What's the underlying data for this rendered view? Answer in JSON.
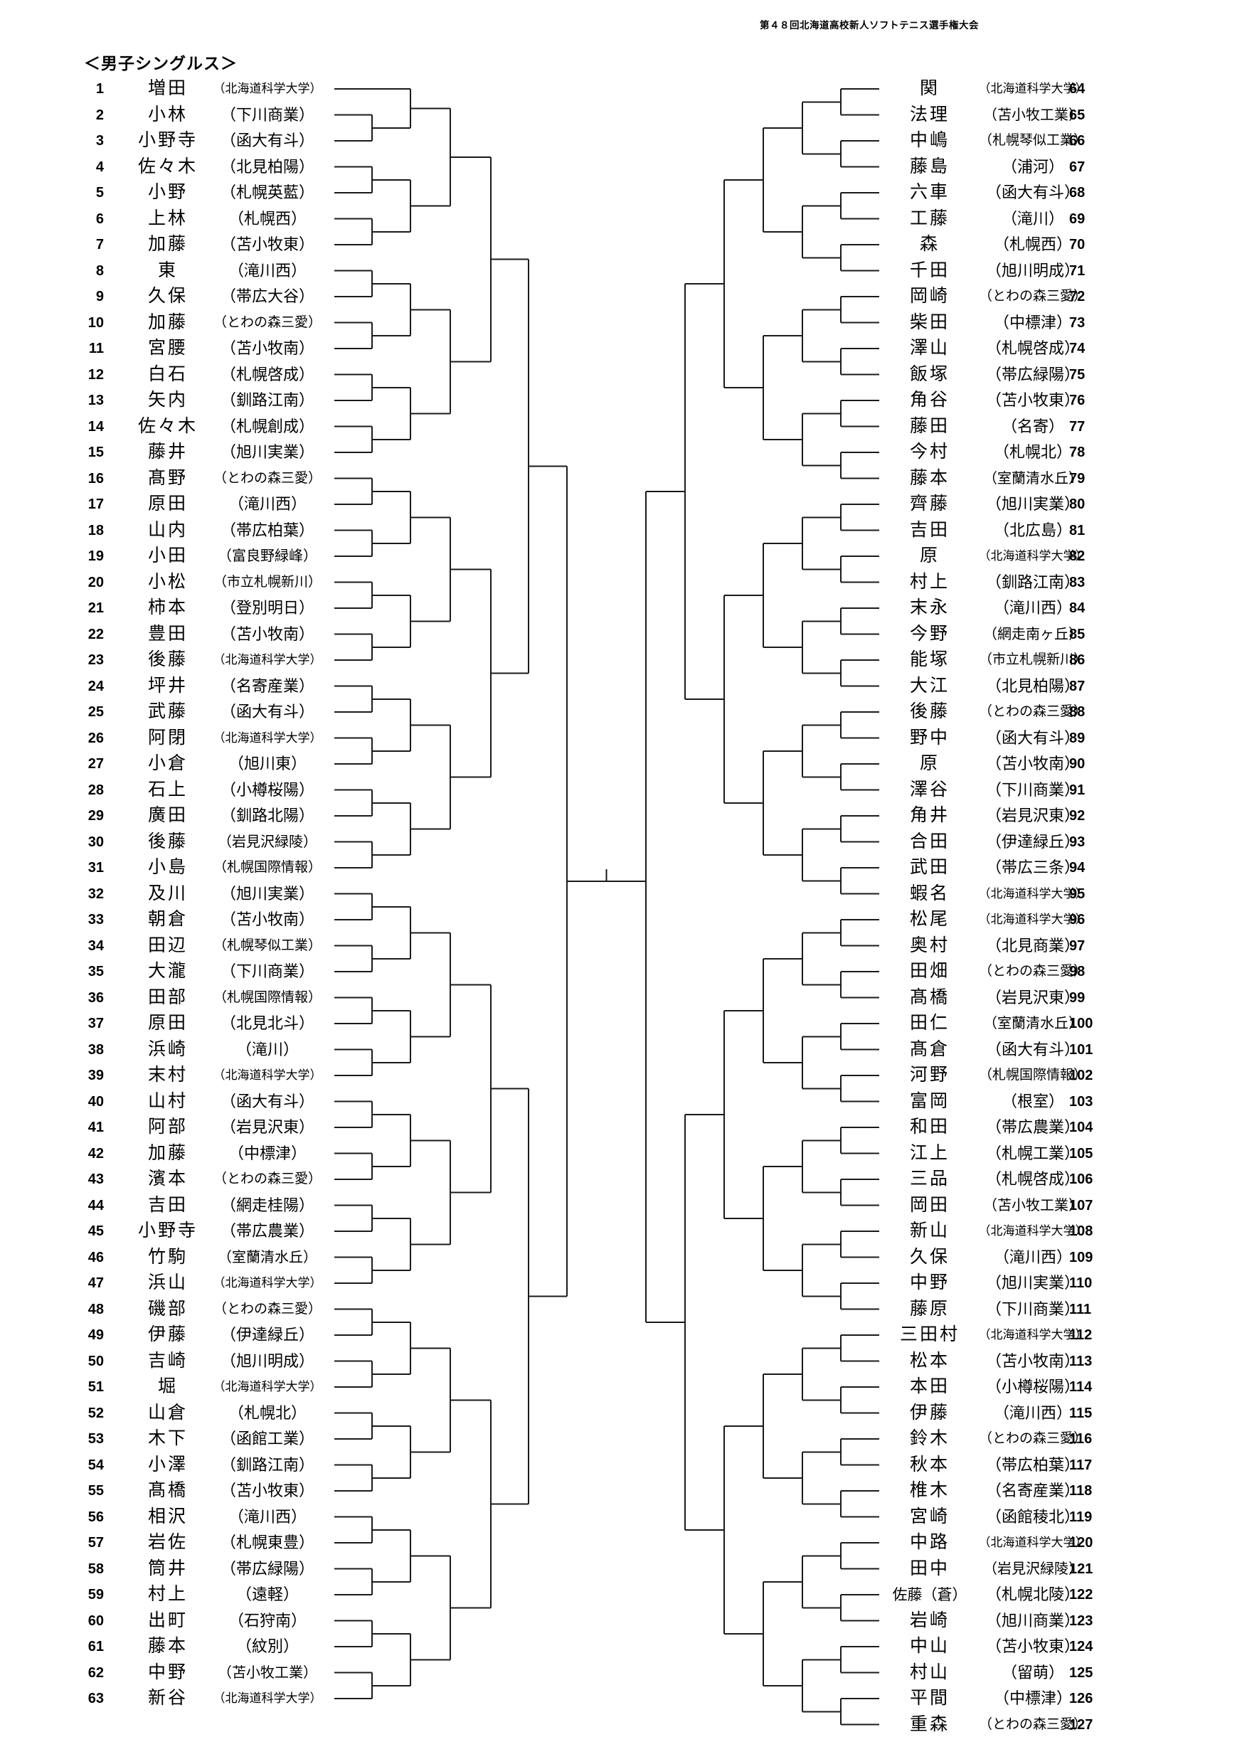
{
  "title": "第４８回北海道高校新人ソフトテニス選手権大会",
  "section": "＜男子シングルス＞",
  "colors": {
    "line": "#1a1a1a",
    "text": "#000000"
  },
  "bracket": {
    "format": "single-elimination-128-draw",
    "bye": "entry 1 advances directly to round 2",
    "left": [
      {
        "no": 1,
        "name": "増田",
        "school": "（北海道科学大学）"
      },
      {
        "no": 2,
        "name": "小林",
        "school": "（下川商業）"
      },
      {
        "no": 3,
        "name": "小野寺",
        "school": "（函大有斗）"
      },
      {
        "no": 4,
        "name": "佐々木",
        "school": "（北見柏陽）"
      },
      {
        "no": 5,
        "name": "小野",
        "school": "（札幌英藍）"
      },
      {
        "no": 6,
        "name": "上林",
        "school": "（札幌西）"
      },
      {
        "no": 7,
        "name": "加藤",
        "school": "（苫小牧東）"
      },
      {
        "no": 8,
        "name": "東",
        "school": "（滝川西）"
      },
      {
        "no": 9,
        "name": "久保",
        "school": "（帯広大谷）"
      },
      {
        "no": 10,
        "name": "加藤",
        "school": "（とわの森三愛）"
      },
      {
        "no": 11,
        "name": "宮腰",
        "school": "（苫小牧南）"
      },
      {
        "no": 12,
        "name": "白石",
        "school": "（札幌啓成）"
      },
      {
        "no": 13,
        "name": "矢内",
        "school": "（釧路江南）"
      },
      {
        "no": 14,
        "name": "佐々木",
        "school": "（札幌創成）"
      },
      {
        "no": 15,
        "name": "藤井",
        "school": "（旭川実業）"
      },
      {
        "no": 16,
        "name": "髙野",
        "school": "（とわの森三愛）"
      },
      {
        "no": 17,
        "name": "原田",
        "school": "（滝川西）"
      },
      {
        "no": 18,
        "name": "山内",
        "school": "（帯広柏葉）"
      },
      {
        "no": 19,
        "name": "小田",
        "school": "（富良野緑峰）"
      },
      {
        "no": 20,
        "name": "小松",
        "school": "（市立札幌新川）"
      },
      {
        "no": 21,
        "name": "柿本",
        "school": "（登別明日）"
      },
      {
        "no": 22,
        "name": "豊田",
        "school": "（苫小牧南）"
      },
      {
        "no": 23,
        "name": "後藤",
        "school": "（北海道科学大学）"
      },
      {
        "no": 24,
        "name": "坪井",
        "school": "（名寄産業）"
      },
      {
        "no": 25,
        "name": "武藤",
        "school": "（函大有斗）"
      },
      {
        "no": 26,
        "name": "阿閉",
        "school": "（北海道科学大学）"
      },
      {
        "no": 27,
        "name": "小倉",
        "school": "（旭川東）"
      },
      {
        "no": 28,
        "name": "石上",
        "school": "（小樽桜陽）"
      },
      {
        "no": 29,
        "name": "廣田",
        "school": "（釧路北陽）"
      },
      {
        "no": 30,
        "name": "後藤",
        "school": "（岩見沢緑陵）"
      },
      {
        "no": 31,
        "name": "小島",
        "school": "（札幌国際情報）"
      },
      {
        "no": 32,
        "name": "及川",
        "school": "（旭川実業）"
      },
      {
        "no": 33,
        "name": "朝倉",
        "school": "（苫小牧南）"
      },
      {
        "no": 34,
        "name": "田辺",
        "school": "（札幌琴似工業）"
      },
      {
        "no": 35,
        "name": "大瀧",
        "school": "（下川商業）"
      },
      {
        "no": 36,
        "name": "田部",
        "school": "（札幌国際情報）"
      },
      {
        "no": 37,
        "name": "原田",
        "school": "（北見北斗）"
      },
      {
        "no": 38,
        "name": "浜崎",
        "school": "（滝川）"
      },
      {
        "no": 39,
        "name": "末村",
        "school": "（北海道科学大学）"
      },
      {
        "no": 40,
        "name": "山村",
        "school": "（函大有斗）"
      },
      {
        "no": 41,
        "name": "阿部",
        "school": "（岩見沢東）"
      },
      {
        "no": 42,
        "name": "加藤",
        "school": "（中標津）"
      },
      {
        "no": 43,
        "name": "濱本",
        "school": "（とわの森三愛）"
      },
      {
        "no": 44,
        "name": "吉田",
        "school": "（網走桂陽）"
      },
      {
        "no": 45,
        "name": "小野寺",
        "school": "（帯広農業）"
      },
      {
        "no": 46,
        "name": "竹駒",
        "school": "（室蘭清水丘）"
      },
      {
        "no": 47,
        "name": "浜山",
        "school": "（北海道科学大学）"
      },
      {
        "no": 48,
        "name": "磯部",
        "school": "（とわの森三愛）"
      },
      {
        "no": 49,
        "name": "伊藤",
        "school": "（伊達緑丘）"
      },
      {
        "no": 50,
        "name": "吉崎",
        "school": "（旭川明成）"
      },
      {
        "no": 51,
        "name": "堀",
        "school": "（北海道科学大学）"
      },
      {
        "no": 52,
        "name": "山倉",
        "school": "（札幌北）"
      },
      {
        "no": 53,
        "name": "木下",
        "school": "（函館工業）"
      },
      {
        "no": 54,
        "name": "小澤",
        "school": "（釧路江南）"
      },
      {
        "no": 55,
        "name": "髙橋",
        "school": "（苫小牧東）"
      },
      {
        "no": 56,
        "name": "相沢",
        "school": "（滝川西）"
      },
      {
        "no": 57,
        "name": "岩佐",
        "school": "（札幌東豊）"
      },
      {
        "no": 58,
        "name": "筒井",
        "school": "（帯広緑陽）"
      },
      {
        "no": 59,
        "name": "村上",
        "school": "（遠軽）"
      },
      {
        "no": 60,
        "name": "出町",
        "school": "（石狩南）"
      },
      {
        "no": 61,
        "name": "藤本",
        "school": "（紋別）"
      },
      {
        "no": 62,
        "name": "中野",
        "school": "（苫小牧工業）"
      },
      {
        "no": 63,
        "name": "新谷",
        "school": "（北海道科学大学）"
      }
    ],
    "right": [
      {
        "no": 64,
        "name": "関",
        "school": "（北海道科学大学）"
      },
      {
        "no": 65,
        "name": "法理",
        "school": "（苫小牧工業）"
      },
      {
        "no": 66,
        "name": "中嶋",
        "school": "（札幌琴似工業）"
      },
      {
        "no": 67,
        "name": "藤島",
        "school": "（浦河）"
      },
      {
        "no": 68,
        "name": "六車",
        "school": "（函大有斗）"
      },
      {
        "no": 69,
        "name": "工藤",
        "school": "（滝川）"
      },
      {
        "no": 70,
        "name": "森",
        "school": "（札幌西）"
      },
      {
        "no": 71,
        "name": "千田",
        "school": "（旭川明成）"
      },
      {
        "no": 72,
        "name": "岡崎",
        "school": "（とわの森三愛）"
      },
      {
        "no": 73,
        "name": "柴田",
        "school": "（中標津）"
      },
      {
        "no": 74,
        "name": "澤山",
        "school": "（札幌啓成）"
      },
      {
        "no": 75,
        "name": "飯塚",
        "school": "（帯広緑陽）"
      },
      {
        "no": 76,
        "name": "角谷",
        "school": "（苫小牧東）"
      },
      {
        "no": 77,
        "name": "藤田",
        "school": "（名寄）"
      },
      {
        "no": 78,
        "name": "今村",
        "school": "（札幌北）"
      },
      {
        "no": 79,
        "name": "藤本",
        "school": "（室蘭清水丘）"
      },
      {
        "no": 80,
        "name": "齊藤",
        "school": "（旭川実業）"
      },
      {
        "no": 81,
        "name": "吉田",
        "school": "（北広島）"
      },
      {
        "no": 82,
        "name": "原",
        "school": "（北海道科学大学）"
      },
      {
        "no": 83,
        "name": "村上",
        "school": "（釧路江南）"
      },
      {
        "no": 84,
        "name": "末永",
        "school": "（滝川西）"
      },
      {
        "no": 85,
        "name": "今野",
        "school": "（網走南ヶ丘）"
      },
      {
        "no": 86,
        "name": "能塚",
        "school": "（市立札幌新川）"
      },
      {
        "no": 87,
        "name": "大江",
        "school": "（北見柏陽）"
      },
      {
        "no": 88,
        "name": "後藤",
        "school": "（とわの森三愛）"
      },
      {
        "no": 89,
        "name": "野中",
        "school": "（函大有斗）"
      },
      {
        "no": 90,
        "name": "原",
        "school": "（苫小牧南）"
      },
      {
        "no": 91,
        "name": "澤谷",
        "school": "（下川商業）"
      },
      {
        "no": 92,
        "name": "角井",
        "school": "（岩見沢東）"
      },
      {
        "no": 93,
        "name": "合田",
        "school": "（伊達緑丘）"
      },
      {
        "no": 94,
        "name": "武田",
        "school": "（帯広三条）"
      },
      {
        "no": 95,
        "name": "蝦名",
        "school": "（北海道科学大学）"
      },
      {
        "no": 96,
        "name": "松尾",
        "school": "（北海道科学大学）"
      },
      {
        "no": 97,
        "name": "奥村",
        "school": "（北見商業）"
      },
      {
        "no": 98,
        "name": "田畑",
        "school": "（とわの森三愛）"
      },
      {
        "no": 99,
        "name": "髙橋",
        "school": "（岩見沢東）"
      },
      {
        "no": 100,
        "name": "田仁",
        "school": "（室蘭清水丘）"
      },
      {
        "no": 101,
        "name": "髙倉",
        "school": "（函大有斗）"
      },
      {
        "no": 102,
        "name": "河野",
        "school": "（札幌国際情報）"
      },
      {
        "no": 103,
        "name": "富岡",
        "school": "（根室）"
      },
      {
        "no": 104,
        "name": "和田",
        "school": "（帯広農業）"
      },
      {
        "no": 105,
        "name": "江上",
        "school": "（札幌工業）"
      },
      {
        "no": 106,
        "name": "三品",
        "school": "（札幌啓成）"
      },
      {
        "no": 107,
        "name": "岡田",
        "school": "（苫小牧工業）"
      },
      {
        "no": 108,
        "name": "新山",
        "school": "（北海道科学大学）"
      },
      {
        "no": 109,
        "name": "久保",
        "school": "（滝川西）"
      },
      {
        "no": 110,
        "name": "中野",
        "school": "（旭川実業）"
      },
      {
        "no": 111,
        "name": "藤原",
        "school": "（下川商業）"
      },
      {
        "no": 112,
        "name": "三田村",
        "school": "（北海道科学大学）"
      },
      {
        "no": 113,
        "name": "松本",
        "school": "（苫小牧南）"
      },
      {
        "no": 114,
        "name": "本田",
        "school": "（小樽桜陽）"
      },
      {
        "no": 115,
        "name": "伊藤",
        "school": "（滝川西）"
      },
      {
        "no": 116,
        "name": "鈴木",
        "school": "（とわの森三愛）"
      },
      {
        "no": 117,
        "name": "秋本",
        "school": "（帯広柏葉）"
      },
      {
        "no": 118,
        "name": "椎木",
        "school": "（名寄産業）"
      },
      {
        "no": 119,
        "name": "宮崎",
        "school": "（函館稜北）"
      },
      {
        "no": 120,
        "name": "中路",
        "school": "（北海道科学大学）"
      },
      {
        "no": 121,
        "name": "田中",
        "school": "（岩見沢緑陵）"
      },
      {
        "no": 122,
        "name": "佐藤（蒼）",
        "school": "（札幌北陵）"
      },
      {
        "no": 123,
        "name": "岩崎",
        "school": "（旭川商業）"
      },
      {
        "no": 124,
        "name": "中山",
        "school": "（苫小牧東）"
      },
      {
        "no": 125,
        "name": "村山",
        "school": "（留萌）"
      },
      {
        "no": 126,
        "name": "平間",
        "school": "（中標津）"
      },
      {
        "no": 127,
        "name": "重森",
        "school": "（とわの森三愛）"
      }
    ]
  }
}
